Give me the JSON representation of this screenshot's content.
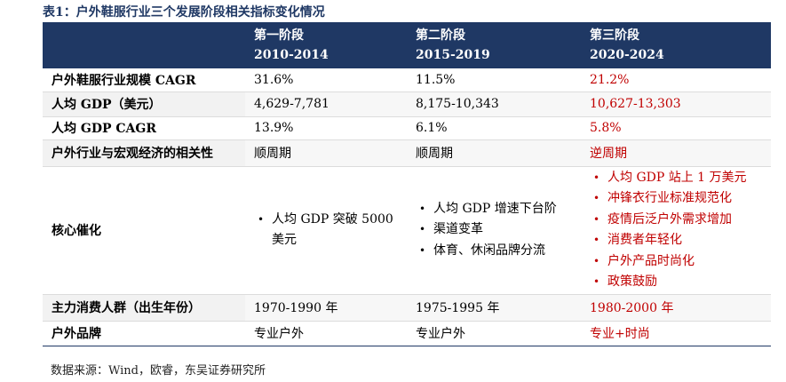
{
  "title": "表1：户外鞋服行业三个发展阶段相关指标变化情况",
  "header": [
    {
      "name": "第一阶段",
      "period": "2010-2014"
    },
    {
      "name": "第二阶段",
      "period": "2015-2019"
    },
    {
      "name": "第三阶段",
      "period": "2020-2024"
    }
  ],
  "rows": {
    "cagr": {
      "label": "户外鞋服行业规模 CAGR",
      "values": [
        "31.6%",
        "11.5%",
        "21.2%"
      ]
    },
    "gdp_per_capita": {
      "label": "人均 GDP（美元）",
      "values": [
        "4,629-7,781",
        "8,175-10,343",
        "10,627-13,303"
      ]
    },
    "gdp_cagr": {
      "label": "人均 GDP CAGR",
      "values": [
        "13.9%",
        "6.1%",
        "5.8%"
      ]
    },
    "correlation": {
      "label": "户外行业与宏观经济的相关性",
      "values": [
        "顺周期",
        "顺周期",
        "逆周期"
      ]
    },
    "catalyst": {
      "label": "核心催化",
      "stage1": [
        "人均 GDP 突破 5000 美元"
      ],
      "stage2": [
        "人均 GDP 增速下台阶",
        "渠道变革",
        "体育、休闲品牌分流"
      ],
      "stage3": [
        "人均 GDP 站上 1 万美元",
        "冲锋衣行业标准规范化",
        "疫情后泛户外需求增加",
        "消费者年轻化",
        "户外产品时尚化",
        "政策鼓励"
      ]
    },
    "consumers": {
      "label": "主力消费人群（出生年份）",
      "values": [
        "1970-1990 年",
        "1975-1995 年",
        "1980-2000 年"
      ]
    },
    "brands": {
      "label": "户外品牌",
      "values": [
        "专业户外",
        "专业户外",
        "专业+时尚"
      ]
    }
  },
  "bullet": "•",
  "source": "数据来源：Wind，欧睿，东吴证券研究所",
  "colors": {
    "header_bg": "#1f3864",
    "highlight": "#c00000"
  }
}
